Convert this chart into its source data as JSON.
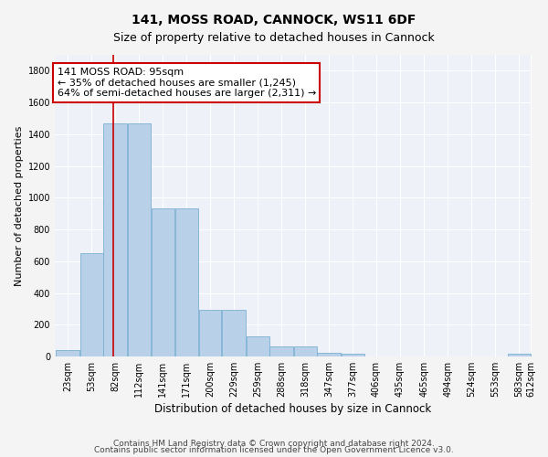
{
  "title": "141, MOSS ROAD, CANNOCK, WS11 6DF",
  "subtitle": "Size of property relative to detached houses in Cannock",
  "xlabel": "Distribution of detached houses by size in Cannock",
  "ylabel": "Number of detached properties",
  "bin_edges": [
    23,
    53,
    82,
    112,
    141,
    171,
    200,
    229,
    259,
    288,
    318,
    347,
    377,
    406,
    435,
    465,
    494,
    524,
    553,
    583,
    612
  ],
  "bar_values": [
    40,
    650,
    1470,
    1470,
    930,
    930,
    295,
    295,
    125,
    65,
    65,
    22,
    15,
    0,
    0,
    0,
    0,
    0,
    0,
    15
  ],
  "bar_color": "#b8d0e8",
  "bar_edge_color": "#7aafd4",
  "property_size": 95,
  "property_line_color": "#cc0000",
  "annotation_text": "141 MOSS ROAD: 95sqm\n← 35% of detached houses are smaller (1,245)\n64% of semi-detached houses are larger (2,311) →",
  "annotation_box_facecolor": "#ffffff",
  "annotation_box_edgecolor": "#cc0000",
  "ylim": [
    0,
    1900
  ],
  "yticks": [
    0,
    200,
    400,
    600,
    800,
    1000,
    1200,
    1400,
    1600,
    1800
  ],
  "background_color": "#eef2f8",
  "grid_color": "#ffffff",
  "footnote1": "Contains HM Land Registry data © Crown copyright and database right 2024.",
  "footnote2": "Contains public sector information licensed under the Open Government Licence v3.0.",
  "title_fontsize": 10,
  "subtitle_fontsize": 9,
  "ylabel_fontsize": 8,
  "xlabel_fontsize": 8.5,
  "tick_fontsize": 7,
  "annotation_fontsize": 8,
  "footnote_fontsize": 6.5
}
